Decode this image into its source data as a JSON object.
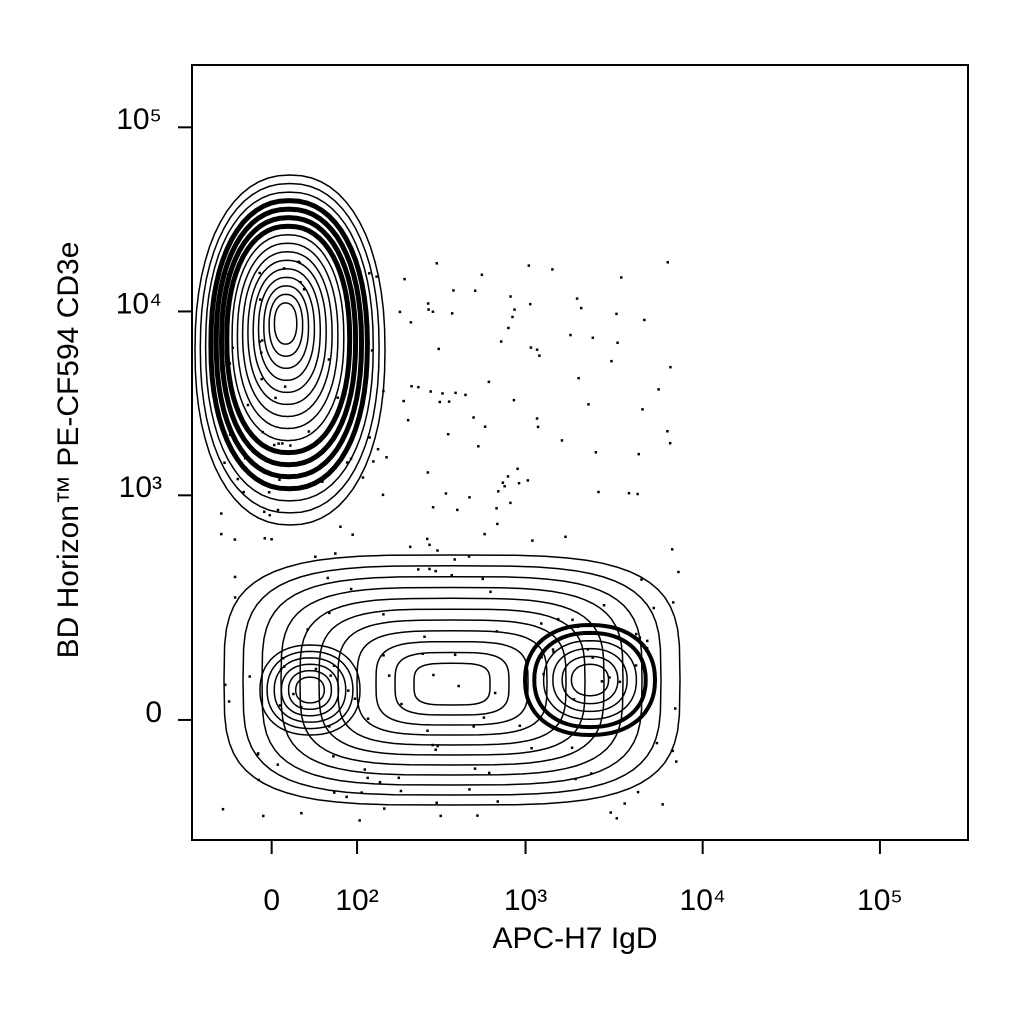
{
  "chart_data": {
    "type": "contour",
    "x_label": "APC-H7 IgD",
    "y_label": "BD Horizon™ PE-CF594 CD3e",
    "scale": "biexponential",
    "xlim": [
      -91,
      314000
    ],
    "ylim": [
      -258,
      218000
    ],
    "xticks": [
      0,
      {
        "value": 100,
        "label": "10²"
      },
      {
        "value": 1000,
        "label": "10³"
      },
      {
        "value": 10000,
        "label": "10⁴"
      },
      {
        "value": 100000,
        "label": "10⁵"
      }
    ],
    "yticks": [
      0,
      {
        "value": 1000,
        "label": "10³"
      },
      {
        "value": 10000,
        "label": "10⁴"
      },
      {
        "value": 100000,
        "label": "10⁵"
      }
    ],
    "color": "#000000"
  }
}
